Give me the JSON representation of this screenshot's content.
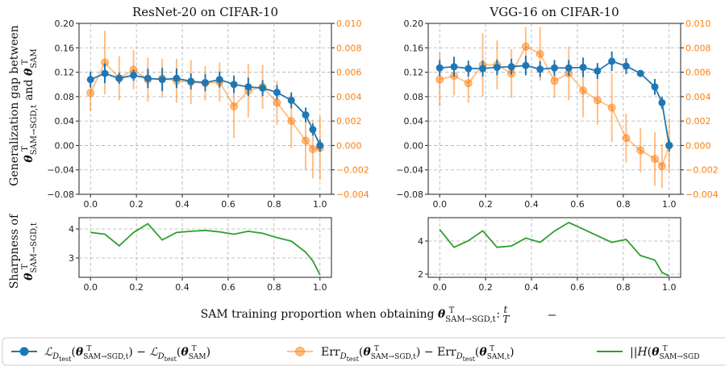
{
  "colors": {
    "blue": "#1f77b4",
    "orange": "#ff7f0e",
    "green": "#2ca02c",
    "grid": "#b0b0b0"
  },
  "labels": {
    "ylabel_top_line1": "Generalization gap between",
    "ylabel_top_line2": "θ_SAM→SGD,t^T and θ_SAM^T",
    "ylabel_bottom_line1": "Sharpness of",
    "ylabel_bottom_line2": "θ_SAM→SGD,t^T",
    "xlabel": "SAM training proportion when obtaining θ_SAM→SGD,t^T: t/T",
    "legend": [
      "ℒ_D_test(θ_SAM→SGD,t^T) − ℒ_D_test(θ_SAM^T)",
      "Err_D_test(θ_SAM→SGD,t^T) − Err_D_test(θ_SAM,t^T)",
      "||H(θ_SAM→SGD,t^T)||"
    ]
  },
  "chart_data": [
    {
      "type": "line",
      "title": "ResNet-20 on CIFAR-10",
      "x": [
        0,
        0.0625,
        0.125,
        0.1875,
        0.25,
        0.3125,
        0.375,
        0.4375,
        0.5,
        0.5625,
        0.625,
        0.6875,
        0.75,
        0.8125,
        0.875,
        0.9375,
        0.96875,
        1.0
      ],
      "xticks": [
        "0.0",
        "0.2",
        "0.4",
        "0.6",
        "0.8",
        "1.0"
      ],
      "ylim": [
        -0.08,
        0.2
      ],
      "yticks": [
        "−0.08",
        "−0.04",
        "0.00",
        "0.04",
        "0.08",
        "0.12",
        "0.16",
        "0.20"
      ],
      "y2lim": [
        -0.004,
        0.01
      ],
      "y2ticks": [
        "−0.004",
        "−0.002",
        "0.000",
        "0.002",
        "0.004",
        "0.006",
        "0.008",
        "0.010"
      ],
      "series": [
        {
          "axis": "left",
          "color": "blue",
          "values": [
            0.108,
            0.118,
            0.11,
            0.115,
            0.11,
            0.108,
            0.11,
            0.105,
            0.103,
            0.108,
            0.1,
            0.096,
            0.094,
            0.087,
            0.074,
            0.05,
            0.026,
            0.0
          ],
          "err": [
            0.013,
            0.016,
            0.009,
            0.009,
            0.016,
            0.019,
            0.016,
            0.013,
            0.014,
            0.013,
            0.014,
            0.015,
            0.013,
            0.012,
            0.013,
            0.012,
            0.01,
            0.01
          ]
        },
        {
          "axis": "right",
          "color": "orange",
          "values": [
            0.0043,
            0.0068,
            0.0055,
            0.0062,
            0.0054,
            0.0055,
            0.0053,
            0.0052,
            0.0051,
            0.0052,
            0.0032,
            0.0045,
            0.0048,
            0.0035,
            0.002,
            0.0004,
            -0.0003,
            -0.0002
          ],
          "err": [
            0.0015,
            0.0026,
            0.0018,
            0.0016,
            0.0018,
            0.0016,
            0.0018,
            0.0018,
            0.0014,
            0.0016,
            0.0026,
            0.0022,
            0.0018,
            0.0018,
            0.0022,
            0.0024,
            0.0024,
            0.0026
          ]
        },
        {
          "axis": "sharp",
          "color": "green",
          "values": [
            3.88,
            3.82,
            3.42,
            3.88,
            4.18,
            3.62,
            3.88,
            3.92,
            3.95,
            3.9,
            3.82,
            3.92,
            3.85,
            3.7,
            3.58,
            3.2,
            2.9,
            2.42
          ]
        }
      ],
      "sharp_ylim": [
        2.4,
        4.3
      ],
      "sharp_yticks": [
        3,
        4
      ]
    },
    {
      "type": "line",
      "title": "VGG-16 on CIFAR-10",
      "x": [
        0,
        0.0625,
        0.125,
        0.1875,
        0.25,
        0.3125,
        0.375,
        0.4375,
        0.5,
        0.5625,
        0.625,
        0.6875,
        0.75,
        0.8125,
        0.875,
        0.9375,
        0.96875,
        1.0
      ],
      "xticks": [
        "0.0",
        "0.2",
        "0.4",
        "0.6",
        "0.8",
        "1.0"
      ],
      "ylim": [
        -0.08,
        0.2
      ],
      "yticks": [
        "−0.08",
        "−0.04",
        "0.00",
        "0.04",
        "0.08",
        "0.12",
        "0.16",
        "0.20"
      ],
      "y2lim": [
        -0.004,
        0.01
      ],
      "y2ticks": [
        "−0.004",
        "−0.002",
        "0.000",
        "0.002",
        "0.004",
        "0.006",
        "0.008",
        "0.010"
      ],
      "series": [
        {
          "axis": "left",
          "color": "blue",
          "values": [
            0.127,
            0.129,
            0.126,
            0.126,
            0.128,
            0.129,
            0.131,
            0.125,
            0.127,
            0.127,
            0.128,
            0.122,
            0.138,
            0.13,
            0.118,
            0.096,
            0.07,
            0.0
          ],
          "err": [
            0.013,
            0.016,
            0.013,
            0.013,
            0.013,
            0.013,
            0.016,
            0.013,
            0.013,
            0.013,
            0.016,
            0.013,
            0.016,
            0.013,
            0.005,
            0.013,
            0.01,
            0.01
          ]
        },
        {
          "axis": "right",
          "color": "orange",
          "values": [
            0.0054,
            0.0057,
            0.0051,
            0.0066,
            0.0066,
            0.0059,
            0.0081,
            0.0075,
            0.0053,
            0.0059,
            0.0045,
            0.0037,
            0.0031,
            0.0006,
            -0.0004,
            -0.0011,
            -0.0017,
            0.0
          ],
          "err": [
            0.0022,
            0.0016,
            0.0016,
            0.0026,
            0.002,
            0.002,
            0.0016,
            0.0022,
            0.0014,
            0.0022,
            0.0022,
            0.002,
            0.0028,
            0.002,
            0.0018,
            0.0022,
            0.0018,
            0.0022
          ]
        },
        {
          "axis": "sharp",
          "color": "green",
          "values": [
            4.7,
            3.62,
            4.02,
            4.62,
            3.62,
            3.7,
            4.18,
            3.92,
            4.6,
            5.12,
            4.72,
            4.32,
            3.92,
            4.1,
            3.12,
            2.85,
            2.1,
            1.88
          ]
        }
      ],
      "sharp_ylim": [
        1.8,
        5.3
      ],
      "sharp_yticks": [
        2,
        4
      ]
    }
  ]
}
